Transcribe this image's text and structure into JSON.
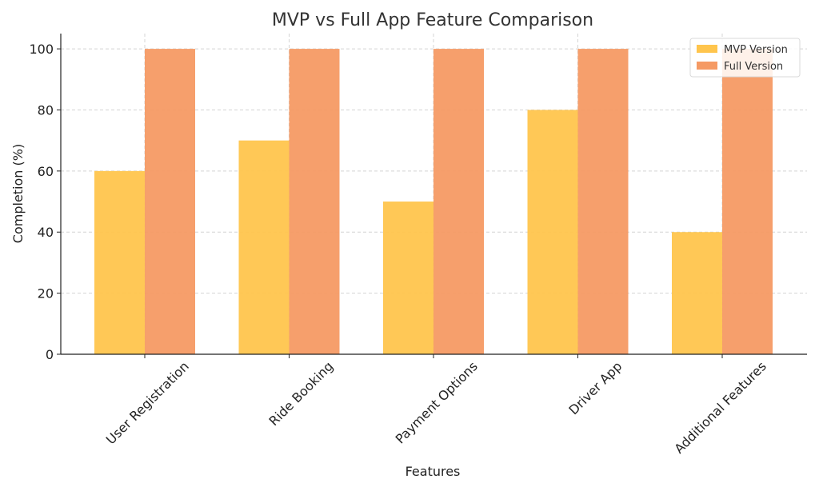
{
  "chart_data": {
    "type": "bar",
    "title": "MVP vs Full App Feature Comparison",
    "xlabel": "Features",
    "ylabel": "Completion (%)",
    "categories": [
      "User Registration",
      "Ride Booking",
      "Payment Options",
      "Driver App",
      "Additional Features"
    ],
    "series": [
      {
        "name": "MVP Version",
        "values": [
          60,
          70,
          50,
          80,
          40
        ],
        "color": "#FFC54D"
      },
      {
        "name": "Full Version",
        "values": [
          100,
          100,
          100,
          100,
          100
        ],
        "color": "#F59A64"
      }
    ],
    "ylim": [
      0,
      105
    ],
    "yticks": [
      0,
      20,
      40,
      60,
      80,
      100
    ],
    "grid": true,
    "legend_position": "top-right"
  }
}
